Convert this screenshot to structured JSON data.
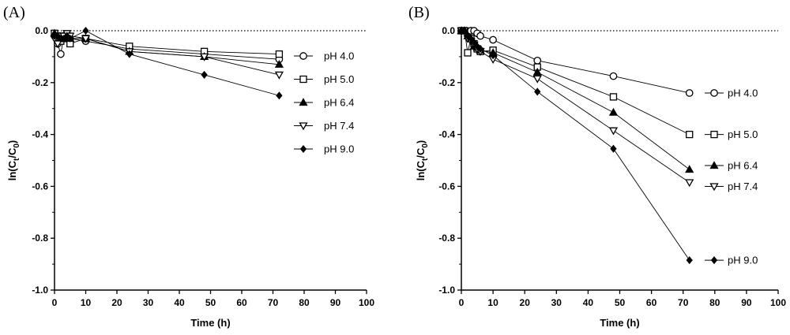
{
  "panels": [
    {
      "panel_label": "(A)",
      "chart_data": {
        "type": "line",
        "xlabel": "Time (h)",
        "ylabel_main": "ln(C",
        "ylabel_sub1": "t",
        "ylabel_mid": "/C",
        "ylabel_sub2": "0",
        "ylabel_end": ")",
        "xlim": [
          0,
          100
        ],
        "ylim": [
          -1.0,
          0.0
        ],
        "x_ticks": [
          "0",
          "10",
          "20",
          "30",
          "40",
          "50",
          "60",
          "70",
          "80",
          "90",
          "100"
        ],
        "y_ticks": [
          "0.0",
          "-0.2",
          "-0.4",
          "-0.6",
          "-0.8",
          "-1.0"
        ],
        "reference_line": 0,
        "legend_position": "right",
        "series": [
          {
            "name": "pH 4.0",
            "marker": "circle-open",
            "x": [
              0,
              1,
              2,
              3,
              4,
              5,
              10,
              24,
              48,
              72
            ],
            "y": [
              -0.02,
              -0.05,
              -0.09,
              -0.02,
              -0.03,
              -0.03,
              -0.04,
              -0.07,
              -0.09,
              -0.11
            ]
          },
          {
            "name": "pH 5.0",
            "marker": "square-open",
            "x": [
              0,
              1,
              2,
              3,
              4,
              5,
              10,
              24,
              48,
              72
            ],
            "y": [
              -0.01,
              -0.02,
              -0.04,
              -0.03,
              -0.02,
              -0.05,
              -0.03,
              -0.06,
              -0.08,
              -0.09
            ]
          },
          {
            "name": "pH 6.4",
            "marker": "triangle-up-filled",
            "x": [
              0,
              1,
              2,
              3,
              4,
              5,
              10,
              24,
              48,
              72
            ],
            "y": [
              -0.01,
              -0.02,
              -0.03,
              -0.02,
              -0.03,
              -0.03,
              -0.03,
              -0.08,
              -0.1,
              -0.13
            ]
          },
          {
            "name": "pH 7.4",
            "marker": "triangle-down-open",
            "x": [
              0,
              1,
              2,
              3,
              4,
              5,
              10,
              24,
              48,
              72
            ],
            "y": [
              -0.03,
              -0.05,
              -0.02,
              -0.02,
              -0.01,
              -0.02,
              -0.03,
              -0.08,
              -0.1,
              -0.17
            ]
          },
          {
            "name": "pH 9.0",
            "marker": "diamond-filled",
            "x": [
              0,
              1,
              2,
              3,
              4,
              5,
              10,
              24,
              48,
              72
            ],
            "y": [
              -0.02,
              -0.02,
              -0.03,
              -0.03,
              -0.02,
              -0.03,
              0.0,
              -0.09,
              -0.17,
              -0.25
            ]
          }
        ]
      }
    },
    {
      "panel_label": "(B)",
      "chart_data": {
        "type": "line",
        "xlabel": "Time (h)",
        "ylabel_main": "ln(C",
        "ylabel_sub1": "t",
        "ylabel_mid": "/C",
        "ylabel_sub2": "0",
        "ylabel_end": ")",
        "xlim": [
          0,
          100
        ],
        "ylim": [
          -1.0,
          0.0
        ],
        "x_ticks": [
          "0",
          "10",
          "20",
          "30",
          "40",
          "50",
          "60",
          "70",
          "80",
          "90",
          "100"
        ],
        "y_ticks": [
          "0.0",
          "-0.2",
          "-0.4",
          "-0.6",
          "-0.8",
          "-1.0"
        ],
        "reference_line": 0,
        "legend_position": "right, at line ends",
        "series": [
          {
            "name": "pH 4.0",
            "marker": "circle-open",
            "x": [
              0,
              1,
              2,
              3,
              4,
              5,
              6,
              10,
              24,
              48,
              72
            ],
            "y": [
              0.0,
              0.0,
              -0.01,
              0.0,
              0.0,
              -0.01,
              -0.02,
              -0.035,
              -0.115,
              -0.175,
              -0.24
            ]
          },
          {
            "name": "pH 5.0",
            "marker": "square-open",
            "x": [
              0,
              1,
              2,
              3,
              4,
              5,
              6,
              10,
              24,
              48,
              72
            ],
            "y": [
              0.0,
              0.0,
              -0.085,
              -0.03,
              -0.05,
              -0.07,
              -0.08,
              -0.075,
              -0.14,
              -0.255,
              -0.4
            ]
          },
          {
            "name": "pH 6.4",
            "marker": "triangle-up-filled",
            "x": [
              0,
              1,
              2,
              3,
              4,
              5,
              6,
              10,
              24,
              48,
              72
            ],
            "y": [
              0.0,
              0.0,
              -0.02,
              -0.03,
              -0.06,
              -0.065,
              -0.075,
              -0.085,
              -0.16,
              -0.315,
              -0.535
            ]
          },
          {
            "name": "pH 7.4",
            "marker": "triangle-down-open",
            "x": [
              0,
              1,
              2,
              3,
              4,
              5,
              6,
              10,
              24,
              48,
              72
            ],
            "y": [
              0.0,
              0.0,
              -0.03,
              -0.04,
              -0.055,
              -0.07,
              -0.08,
              -0.11,
              -0.185,
              -0.385,
              -0.585
            ]
          },
          {
            "name": "pH 9.0",
            "marker": "diamond-filled",
            "x": [
              0,
              1,
              2,
              3,
              4,
              5,
              6,
              10,
              24,
              48,
              72
            ],
            "y": [
              0.0,
              0.0,
              -0.02,
              -0.03,
              -0.045,
              -0.06,
              -0.07,
              -0.095,
              -0.235,
              -0.455,
              -0.885
            ]
          }
        ]
      }
    }
  ]
}
